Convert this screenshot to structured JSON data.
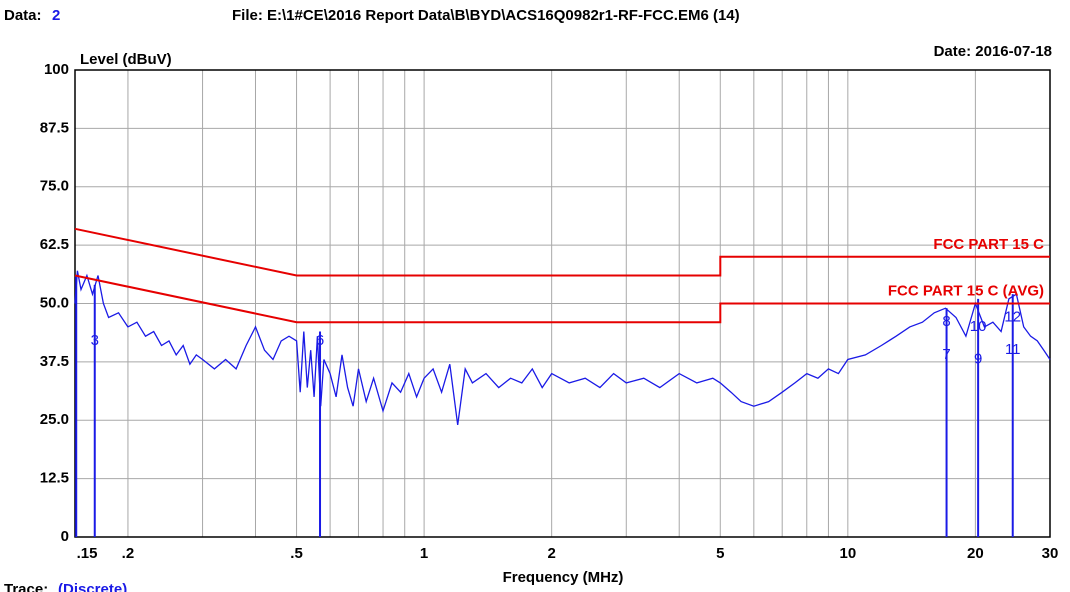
{
  "chart_data": {
    "type": "line",
    "header": {
      "data_label": "Data:",
      "data_value": "2",
      "file": "File: E:\\1#CE\\2016 Report Data\\B\\BYD\\ACS16Q0982r1-RF-FCC.EM6  (14)",
      "date": "Date: 2016-07-18"
    },
    "footer": {
      "trace_label": "Trace:",
      "trace_value": "(Discrete)"
    },
    "y_label": "Level (dBuV)",
    "x_label": "Frequency (MHz)",
    "xlog": true,
    "grid": true,
    "xlim": [
      0.15,
      30
    ],
    "ylim": [
      0,
      100
    ],
    "xticks": [
      {
        "value": 0.15,
        "label": ".15"
      },
      {
        "value": 0.2,
        "label": ".2"
      },
      {
        "value": 0.5,
        "label": ".5"
      },
      1,
      2,
      5,
      10,
      20,
      30
    ],
    "xminor": [
      0.3,
      0.4,
      0.6,
      0.7,
      0.8,
      0.9,
      3,
      4,
      6,
      7,
      8,
      9
    ],
    "yticks": [
      0,
      12.5,
      {
        "value": 25,
        "label": "25.0"
      },
      37.5,
      {
        "value": 50,
        "label": "50.0"
      },
      62.5,
      {
        "value": 75,
        "label": "75.0"
      },
      87.5,
      100
    ],
    "series": [
      {
        "color": "#1a1ae6",
        "x": [
          0.15,
          0.152,
          0.155,
          0.16,
          0.165,
          0.17,
          0.175,
          0.18,
          0.19,
          0.2,
          0.21,
          0.22,
          0.23,
          0.24,
          0.25,
          0.26,
          0.27,
          0.28,
          0.29,
          0.3,
          0.32,
          0.34,
          0.36,
          0.38,
          0.4,
          0.42,
          0.44,
          0.46,
          0.48,
          0.5,
          0.51,
          0.52,
          0.53,
          0.54,
          0.55,
          0.56,
          0.57,
          0.58,
          0.6,
          0.62,
          0.64,
          0.66,
          0.68,
          0.7,
          0.73,
          0.76,
          0.8,
          0.84,
          0.88,
          0.92,
          0.96,
          1.0,
          1.05,
          1.1,
          1.15,
          1.2,
          1.25,
          1.3,
          1.4,
          1.5,
          1.6,
          1.7,
          1.8,
          1.9,
          2.0,
          2.2,
          2.4,
          2.6,
          2.8,
          3.0,
          3.3,
          3.6,
          4.0,
          4.4,
          4.8,
          5.0,
          5.3,
          5.6,
          6.0,
          6.5,
          7.0,
          7.5,
          8.0,
          8.5,
          9.0,
          9.5,
          10,
          11,
          12,
          13,
          14,
          15,
          16,
          17,
          18,
          19,
          20,
          21,
          22,
          23,
          24,
          25,
          26,
          27,
          28,
          29,
          30
        ],
        "values": [
          50,
          57,
          53,
          56,
          52,
          56,
          50,
          47,
          48,
          45,
          46,
          43,
          44,
          41,
          42,
          39,
          41,
          37,
          39,
          38,
          36,
          38,
          36,
          41,
          45,
          40,
          38,
          42,
          43,
          42,
          31,
          44,
          32,
          40,
          30,
          43,
          28,
          38,
          35,
          30,
          39,
          32,
          28,
          36,
          29,
          34,
          27,
          33,
          31,
          35,
          30,
          34,
          36,
          31,
          37,
          24,
          36,
          33,
          35,
          32,
          34,
          33,
          36,
          32,
          35,
          33,
          34,
          32,
          35,
          33,
          34,
          32,
          35,
          33,
          34,
          33,
          31,
          29,
          28,
          29,
          31,
          33,
          35,
          34,
          36,
          35,
          38,
          39,
          41,
          43,
          45,
          46,
          48,
          49,
          47,
          43,
          50,
          45,
          46,
          44,
          51,
          52,
          45,
          43,
          42,
          40,
          38
        ]
      },
      {
        "name": "FCC PART 15 C",
        "color": "#e60000",
        "x": [
          0.15,
          0.5,
          5,
          5,
          30
        ],
        "values": [
          66,
          56,
          56,
          60,
          60
        ]
      },
      {
        "name": "FCC PART 15 C (AVG)",
        "color": "#e60000",
        "x": [
          0.15,
          0.5,
          5,
          5,
          30
        ],
        "values": [
          56,
          46,
          46,
          50,
          50
        ]
      }
    ],
    "markers": [
      {
        "freq": 0.151,
        "level": 56
      },
      {
        "freq": 0.167,
        "level": 54
      },
      {
        "freq": 0.568,
        "level": 44
      },
      {
        "freq": 17.1,
        "level": 49
      },
      {
        "freq": 20.3,
        "level": 51
      },
      {
        "freq": 24.5,
        "level": 52
      }
    ],
    "marker_labels": [
      {
        "text": "3",
        "freq": 0.167,
        "level": 42
      },
      {
        "text": "6",
        "freq": 0.568,
        "level": 42
      },
      {
        "text": "8",
        "freq": 17.1,
        "level": 46
      },
      {
        "text": "7",
        "freq": 17.1,
        "level": 39
      },
      {
        "text": "10",
        "freq": 20.3,
        "level": 45
      },
      {
        "text": "9",
        "freq": 20.3,
        "level": 38
      },
      {
        "text": "12",
        "freq": 24.5,
        "level": 47
      },
      {
        "text": "11",
        "freq": 24.5,
        "level": 40
      }
    ]
  }
}
